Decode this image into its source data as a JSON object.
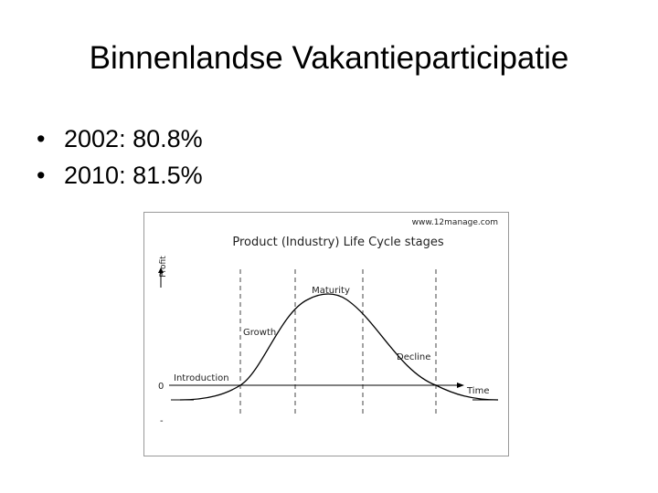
{
  "title": "Binnenlandse Vakantieparticipatie",
  "bullets": [
    "2002: 80.8%",
    "2010: 81.5%"
  ],
  "diagram": {
    "source": "www.12manage.com",
    "title": "Product (Industry) Life Cycle stages",
    "y_label": "Profit",
    "x_label": "Time",
    "zero_label": "0",
    "minus_label": "-",
    "stages": [
      "Introduction",
      "Growth",
      "Maturity",
      "Decline"
    ]
  }
}
